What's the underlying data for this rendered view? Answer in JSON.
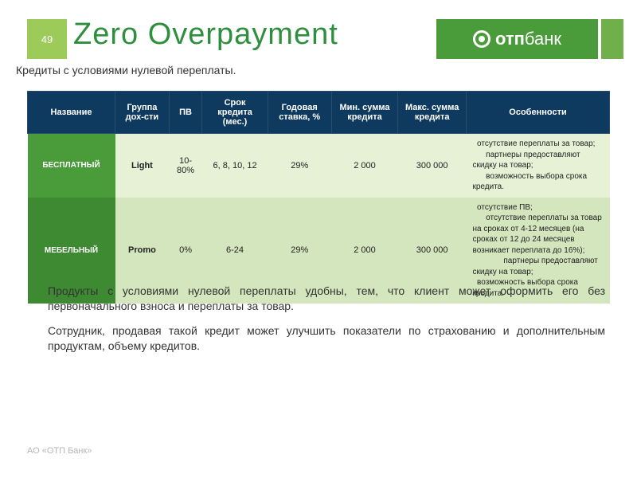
{
  "pageNumber": "49",
  "title": "Zero Overpayment",
  "brand": {
    "name1": "отп",
    "name2": "банк"
  },
  "subtitle": "Кредиты с условиями нулевой переплаты.",
  "columns": [
    "Название",
    "Группа дох-сти",
    "ПВ",
    "Срок кредита (мес.)",
    "Годовая ставка, %",
    "Мин. сумма кредита",
    "Макс. сумма кредита",
    "Особенности"
  ],
  "rows": [
    {
      "name": "БЕСПЛАТНЫЙ",
      "group": "Light",
      "pv": "10-80%",
      "term": "6, 8, 10, 12",
      "rate": "29%",
      "min": "2 000",
      "max": "300 000",
      "features": "  отсутствие переплаты за товар;\n      партнеры предоставляют скидку на товар;\n      возможность выбора срока кредита."
    },
    {
      "name": "МЕБЕЛЬНЫЙ",
      "group": "Promo",
      "pv": "0%",
      "term": "6-24",
      "rate": "29%",
      "min": "2 000",
      "max": "300 000",
      "features": "  отсутствие ПВ;\n      отсутствие переплаты за товар на сроках от 4-12 месяцев  (на сроках от 12 до 24 месяцев  возникает переплата  до 16%);\n              партнеры предоставляют скидку на товар;\n  возможность выбора срока кредита."
    }
  ],
  "para1": "Продукты с условиями нулевой переплаты удобны, тем, что клиент может оформить его без первоначального взноса и переплаты за товар.",
  "para2": "Сотрудник, продавая такой кредит может улучшить показатели по страхованию и дополнительным продуктам, объему кредитов.",
  "footer": "АО «ОТП Банк»",
  "colors": {
    "header_bg": "#0f3a5f",
    "row1_bg": "#e6f1d6",
    "row1_name_bg": "#4a9b3a",
    "row2_bg": "#d4e6bd",
    "row2_name_bg": "#3e8a32",
    "title_color": "#2f8f3e",
    "badge_bg": "#9ccb5a"
  }
}
